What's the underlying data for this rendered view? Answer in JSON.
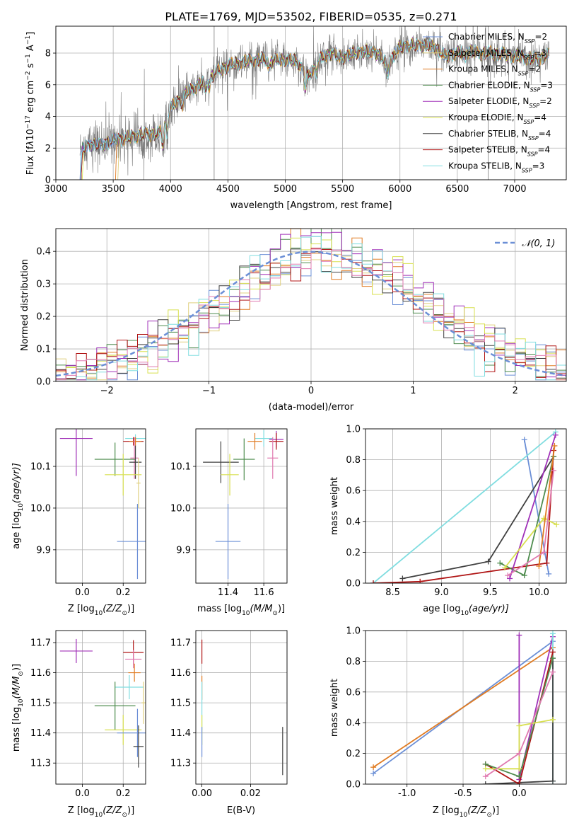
{
  "figure": {
    "title": "PLATE=1769, MJD=53502, FIBERID=0535, z=0.271"
  },
  "colors": {
    "chabrier_miles": "#6b8fd6",
    "salpeter_miles": "#e0d080",
    "kroupa_miles": "#e07b22",
    "chabrier_elodie": "#4e8c4e",
    "salpeter_elodie": "#a030b8",
    "kroupa_elodie": "#d8e050",
    "chabrier_stelib": "#404040",
    "salpeter_stelib": "#b01515",
    "kroupa_stelib": "#80dde0",
    "pink": "#e07ab0",
    "data_gray": "#7a7a7a",
    "grid": "#b0b0b0"
  },
  "chart_data": [
    {
      "type": "line",
      "panel": "spectrum",
      "xlabel": "wavelength [Angstrom, rest frame]",
      "ylabel_parts": [
        "Flux [f",
        "λ",
        "10",
        "−17",
        " erg cm",
        "−2",
        " s",
        "−1",
        " A",
        "−1",
        "]"
      ],
      "xlim": [
        3000,
        7450
      ],
      "ylim": [
        0,
        9.7
      ],
      "xticks": [
        3000,
        3500,
        4000,
        4500,
        5000,
        5500,
        6000,
        6500,
        7000
      ],
      "yticks": [
        0,
        2,
        4,
        6,
        8
      ],
      "legend_position": "upper-right",
      "model_continuum": {
        "x": [
          3200,
          3300,
          3400,
          3500,
          3600,
          3700,
          3800,
          3900,
          4000,
          4100,
          4200,
          4300,
          4400,
          4500,
          4600,
          4700,
          4800,
          4900,
          5000,
          5100,
          5200,
          5300,
          5400,
          5500,
          5600,
          5700,
          5800,
          5900,
          6000,
          6100,
          6200,
          6300,
          6400,
          6500,
          6600,
          6700,
          6800,
          6900,
          7000,
          7100,
          7200,
          7300
        ],
        "y": [
          1.9,
          2.2,
          2.2,
          2.5,
          2.6,
          2.8,
          2.9,
          2.9,
          4.5,
          5.2,
          5.8,
          6.2,
          6.8,
          7.2,
          7.4,
          7.5,
          7.6,
          7.5,
          7.6,
          7.5,
          6.5,
          7.6,
          8.0,
          7.7,
          8.0,
          8.1,
          8.0,
          7.3,
          8.4,
          8.5,
          8.5,
          8.4,
          7.8,
          8.0,
          8.1,
          8.0,
          8.0,
          7.9,
          7.8,
          7.7,
          7.6,
          7.9
        ]
      },
      "legend": [
        {
          "name": "Chabrier MILES",
          "nssp": "2",
          "color": "chabrier_miles"
        },
        {
          "name": "Salpeter MILES",
          "nssp": "3",
          "color": "salpeter_miles"
        },
        {
          "name": "Kroupa MILES",
          "nssp": "2",
          "color": "kroupa_miles"
        },
        {
          "name": "Chabrier ELODIE",
          "nssp": "3",
          "color": "chabrier_elodie"
        },
        {
          "name": "Salpeter ELODIE",
          "nssp": "2",
          "color": "salpeter_elodie"
        },
        {
          "name": "Kroupa ELODIE",
          "nssp": "4",
          "color": "kroupa_elodie"
        },
        {
          "name": "Chabrier STELIB",
          "nssp": "4",
          "color": "chabrier_stelib"
        },
        {
          "name": "Salpeter STELIB",
          "nssp": "4",
          "color": "salpeter_stelib"
        },
        {
          "name": "Kroupa STELIB",
          "nssp": "3",
          "color": "kroupa_stelib"
        }
      ],
      "legend_nssp_prefix": "N",
      "legend_nssp_sub": "SSP"
    },
    {
      "type": "histogram",
      "panel": "residuals",
      "xlabel": "(data-model)/error",
      "ylabel": "Normed distribution",
      "xlim": [
        -2.5,
        2.5
      ],
      "ylim": [
        0,
        0.47
      ],
      "xticks": [
        -2,
        -1,
        0,
        1,
        2
      ],
      "yticks": [
        0.0,
        0.1,
        0.2,
        0.3,
        0.4
      ],
      "legend": [
        {
          "name": "N(0, 1)",
          "style": "dashed",
          "color": "chabrier_miles"
        }
      ],
      "legend_label": "𝒩(0, 1)",
      "legend_position": "upper-right",
      "bin_width": 0.1
    },
    {
      "type": "scatter",
      "panel": "age_vs_Z",
      "xlabel_parts": [
        "Z [log",
        "10",
        "(Z/Z",
        "⊙",
        ")]"
      ],
      "ylabel_parts": [
        "age  [log",
        "10",
        "(age/yr)]"
      ],
      "xlim": [
        -0.13,
        0.31
      ],
      "ylim": [
        9.82,
        10.19
      ],
      "xticks": [
        0.0,
        0.2
      ],
      "yticks": [
        9.9,
        10.0,
        10.1
      ],
      "points": [
        {
          "x": -0.03,
          "y": 10.167,
          "xerr": 0.08,
          "yerr": 0.09,
          "color": "salpeter_elodie"
        },
        {
          "x": 0.26,
          "y": 10.167,
          "xerr": 0.05,
          "yerr": 0.01,
          "color": "kroupa_stelib"
        },
        {
          "x": 0.25,
          "y": 10.16,
          "xerr": 0.05,
          "yerr": 0.01,
          "color": "salpeter_stelib"
        },
        {
          "x": 0.26,
          "y": 10.16,
          "xerr": 0.03,
          "yerr": 0.01,
          "color": "kroupa_miles"
        },
        {
          "x": 0.255,
          "y": 10.12,
          "xerr": 0.02,
          "yerr": 0.05,
          "color": "pink"
        },
        {
          "x": 0.16,
          "y": 10.117,
          "xerr": 0.1,
          "yerr": 0.04,
          "color": "chabrier_elodie"
        },
        {
          "x": 0.26,
          "y": 10.11,
          "xerr": 0.03,
          "yerr": 0.04,
          "color": "chabrier_stelib"
        },
        {
          "x": 0.2,
          "y": 10.08,
          "xerr": 0.09,
          "yerr": 0.05,
          "color": "kroupa_elodie"
        },
        {
          "x": 0.275,
          "y": 10.06,
          "xerr": 0.01,
          "yerr": 0.06,
          "color": "salpeter_miles"
        },
        {
          "x": 0.27,
          "y": 9.92,
          "xerr": 0.1,
          "yerr": 0.09,
          "color": "chabrier_miles"
        }
      ]
    },
    {
      "type": "scatter",
      "panel": "age_vs_mass",
      "xlabel_parts": [
        "mass [log",
        "10",
        "(M/M",
        "⊙",
        ")]"
      ],
      "xlim": [
        11.22,
        11.73
      ],
      "ylim": [
        9.82,
        10.19
      ],
      "xticks": [
        11.4,
        11.6
      ],
      "yticks": [
        9.9,
        10.0,
        10.1
      ],
      "points": [
        {
          "x": 11.6,
          "y": 10.167,
          "xerr": 0.05,
          "yerr": 0.02,
          "color": "kroupa_stelib"
        },
        {
          "x": 11.67,
          "y": 10.165,
          "xerr": 0.04,
          "yerr": 0.02,
          "color": "salpeter_elodie"
        },
        {
          "x": 11.67,
          "y": 10.16,
          "xerr": 0.04,
          "yerr": 0.02,
          "color": "salpeter_stelib"
        },
        {
          "x": 11.55,
          "y": 10.16,
          "xerr": 0.04,
          "yerr": 0.02,
          "color": "kroupa_miles"
        },
        {
          "x": 11.65,
          "y": 10.12,
          "xerr": 0.03,
          "yerr": 0.05,
          "color": "pink"
        },
        {
          "x": 11.49,
          "y": 10.117,
          "xerr": 0.06,
          "yerr": 0.05,
          "color": "chabrier_elodie"
        },
        {
          "x": 11.36,
          "y": 10.11,
          "xerr": 0.1,
          "yerr": 0.05,
          "color": "chabrier_stelib"
        },
        {
          "x": 11.41,
          "y": 10.08,
          "xerr": 0.05,
          "yerr": 0.05,
          "color": "kroupa_elodie"
        },
        {
          "x": 11.4,
          "y": 9.92,
          "xerr": 0.07,
          "yerr": 0.09,
          "color": "chabrier_miles"
        }
      ]
    },
    {
      "type": "line",
      "panel": "massweight_vs_age",
      "xlabel_parts": [
        "age  [log",
        "10",
        "(age/yr)]"
      ],
      "ylabel": "mass weight",
      "xlim": [
        8.22,
        10.28
      ],
      "ylim": [
        0,
        1.0
      ],
      "xticks": [
        8.5,
        9.0,
        9.5,
        10.0
      ],
      "yticks": [
        0.0,
        0.2,
        0.4,
        0.6,
        0.8,
        1.0
      ],
      "series": [
        {
          "color": "chabrier_miles",
          "x": [
            9.85,
            10.1
          ],
          "y": [
            0.93,
            0.06
          ]
        },
        {
          "color": "kroupa_stelib",
          "x": [
            8.3,
            10.17
          ],
          "y": [
            0.0,
            0.98
          ]
        },
        {
          "color": "chabrier_stelib",
          "x": [
            8.6,
            9.48,
            10.15
          ],
          "y": [
            0.03,
            0.14,
            0.82
          ]
        },
        {
          "color": "salpeter_stelib",
          "x": [
            8.3,
            8.78,
            10.08,
            10.15
          ],
          "y": [
            0.0,
            0.01,
            0.13,
            0.86
          ]
        },
        {
          "color": "chabrier_elodie",
          "x": [
            9.6,
            9.85,
            10.15
          ],
          "y": [
            0.13,
            0.05,
            0.82
          ]
        },
        {
          "color": "salpeter_elodie",
          "x": [
            9.7,
            10.17
          ],
          "y": [
            0.03,
            0.96
          ]
        },
        {
          "color": "kroupa_elodie",
          "x": [
            9.65,
            10.05,
            10.18
          ],
          "y": [
            0.1,
            0.42,
            0.38
          ]
        },
        {
          "color": "kroupa_miles",
          "x": [
            10.0,
            10.16
          ],
          "y": [
            0.11,
            0.89
          ]
        },
        {
          "color": "pink",
          "x": [
            9.68,
            10.05,
            10.15
          ],
          "y": [
            0.05,
            0.2,
            0.73
          ]
        }
      ]
    },
    {
      "type": "scatter",
      "panel": "mass_vs_Z",
      "xlabel_parts": [
        "Z [log",
        "10",
        "(Z/Z",
        "⊙",
        ")]"
      ],
      "ylabel_parts": [
        "mass [log",
        "10",
        "(M/M",
        "⊙",
        ")]"
      ],
      "xlim": [
        -0.13,
        0.31
      ],
      "ylim": [
        11.23,
        11.74
      ],
      "xticks": [
        0.0,
        0.2
      ],
      "yticks": [
        11.3,
        11.4,
        11.5,
        11.6,
        11.7
      ],
      "points": [
        {
          "x": -0.03,
          "y": 11.672,
          "xerr": 0.08,
          "yerr": 0.04,
          "color": "salpeter_elodie"
        },
        {
          "x": 0.25,
          "y": 11.668,
          "xerr": 0.05,
          "yerr": 0.04,
          "color": "salpeter_stelib"
        },
        {
          "x": 0.25,
          "y": 11.645,
          "xerr": 0.04,
          "yerr": 0.03,
          "color": "pink"
        },
        {
          "x": 0.255,
          "y": 11.6,
          "xerr": 0.03,
          "yerr": 0.03,
          "color": "kroupa_miles"
        },
        {
          "x": 0.23,
          "y": 11.552,
          "xerr": 0.07,
          "yerr": 0.04,
          "color": "kroupa_stelib"
        },
        {
          "x": 0.16,
          "y": 11.49,
          "xerr": 0.1,
          "yerr": 0.08,
          "color": "chabrier_elodie"
        },
        {
          "x": 0.2,
          "y": 11.41,
          "xerr": 0.09,
          "yerr": 0.05,
          "color": "kroupa_elodie"
        },
        {
          "x": 0.27,
          "y": 11.4,
          "xerr": 0.1,
          "yerr": 0.08,
          "color": "chabrier_miles"
        },
        {
          "x": 0.3,
          "y": 11.5,
          "xerr": 0.01,
          "yerr": 0.07,
          "color": "salpeter_miles"
        },
        {
          "x": 0.275,
          "y": 11.355,
          "xerr": 0.025,
          "yerr": 0.07,
          "color": "chabrier_stelib"
        }
      ]
    },
    {
      "type": "scatter",
      "panel": "mass_vs_ebv",
      "xlabel": "E(B-V)",
      "xlim": [
        -0.0025,
        0.035
      ],
      "ylim": [
        11.23,
        11.74
      ],
      "xticks": [
        0.0,
        0.02
      ],
      "yticks": [
        11.3,
        11.4,
        11.5,
        11.6,
        11.7
      ],
      "points": [
        {
          "x": 0.0,
          "y": 11.67,
          "xerr": 0.0,
          "yerr": 0.04,
          "color": "salpeter_stelib"
        },
        {
          "x": 0.0,
          "y": 11.55,
          "xerr": 0.0,
          "yerr": 0.04,
          "color": "kroupa_miles"
        },
        {
          "x": 0.0,
          "y": 11.49,
          "xerr": 0.0,
          "yerr": 0.08,
          "color": "kroupa_stelib"
        },
        {
          "x": 0.0,
          "y": 11.41,
          "xerr": 0.0,
          "yerr": 0.05,
          "color": "kroupa_elodie"
        },
        {
          "x": 0.0,
          "y": 11.37,
          "xerr": 0.0,
          "yerr": 0.05,
          "color": "chabrier_miles"
        },
        {
          "x": 0.0332,
          "y": 11.34,
          "xerr": 0.0,
          "yerr": 0.08,
          "color": "chabrier_stelib"
        }
      ]
    },
    {
      "type": "line",
      "panel": "massweight_vs_Z",
      "xlabel_parts": [
        "Z [log",
        "10",
        "(Z/Z",
        "⊙",
        ")]"
      ],
      "ylabel": "mass weight",
      "xlim": [
        -1.37,
        0.42
      ],
      "ylim": [
        0,
        1.0
      ],
      "xticks": [
        -1.0,
        -0.5,
        0.0
      ],
      "yticks": [
        0.0,
        0.2,
        0.4,
        0.6,
        0.8,
        1.0
      ],
      "series": [
        {
          "color": "chabrier_miles",
          "x": [
            -1.3,
            0.3
          ],
          "y": [
            0.07,
            0.93
          ]
        },
        {
          "color": "kroupa_miles",
          "x": [
            -1.3,
            0.3
          ],
          "y": [
            0.11,
            0.89
          ]
        },
        {
          "color": "salpeter_elodie",
          "x": [
            0.0,
            0.0,
            0.3
          ],
          "y": [
            0.97,
            0.03,
            0.96
          ]
        },
        {
          "color": "kroupa_stelib",
          "x": [
            0.3,
            0.3
          ],
          "y": [
            0.02,
            0.98
          ]
        },
        {
          "color": "chabrier_stelib",
          "x": [
            -0.3,
            0.3,
            0.3
          ],
          "y": [
            0.0,
            0.02,
            0.82
          ]
        },
        {
          "color": "salpeter_stelib",
          "x": [
            -0.3,
            0.0,
            0.3
          ],
          "y": [
            0.13,
            0.0,
            0.86
          ]
        },
        {
          "color": "chabrier_elodie",
          "x": [
            -0.3,
            0.0,
            0.3
          ],
          "y": [
            0.13,
            0.05,
            0.82
          ]
        },
        {
          "color": "kroupa_elodie",
          "x": [
            -0.3,
            0.0,
            0.0,
            0.3
          ],
          "y": [
            0.1,
            0.1,
            0.38,
            0.42
          ]
        },
        {
          "color": "pink",
          "x": [
            -0.3,
            0.0,
            0.3
          ],
          "y": [
            0.05,
            0.2,
            0.73
          ]
        }
      ]
    }
  ]
}
